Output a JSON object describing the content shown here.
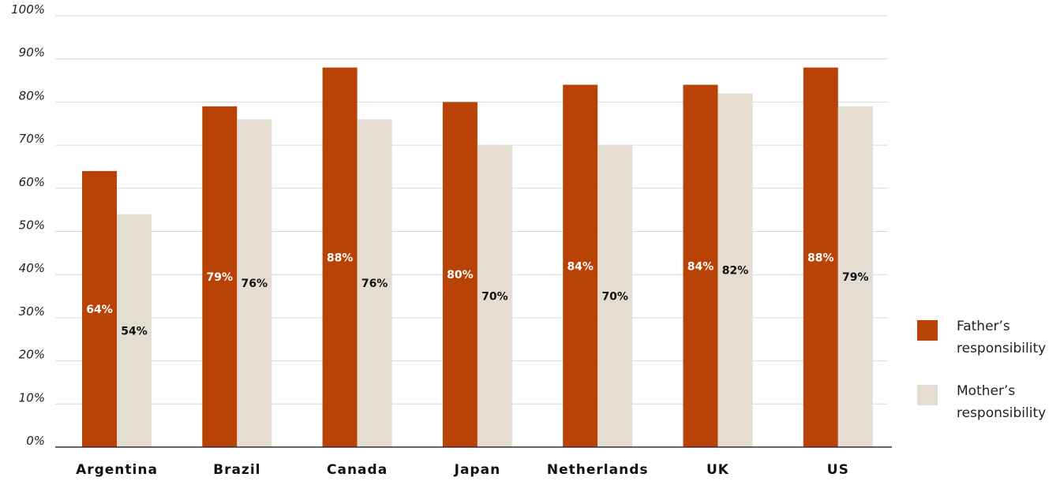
{
  "chart_data": {
    "type": "bar",
    "categories": [
      "Argentina",
      "Brazil",
      "Canada",
      "Japan",
      "Netherlands",
      "UK",
      "US"
    ],
    "series": [
      {
        "name": "Father’s responsibility",
        "values": [
          64,
          79,
          88,
          80,
          84,
          84,
          88
        ],
        "labels": [
          "64%",
          "79%",
          "88%",
          "80%",
          "84%",
          "84%",
          "88%"
        ],
        "color": "#b94207",
        "label_color": "#ffffff"
      },
      {
        "name": "Mother’s responsibility",
        "values": [
          54,
          76,
          76,
          70,
          70,
          82,
          79
        ],
        "labels": [
          "54%",
          "76%",
          "76%",
          "70%",
          "70%",
          "82%",
          "79%"
        ],
        "color": "#e3ddd2",
        "label_color": "#111111"
      }
    ],
    "yticks": [
      {
        "value": 0,
        "label": "0%"
      },
      {
        "value": 10,
        "label": "10%"
      },
      {
        "value": 20,
        "label": "20%"
      },
      {
        "value": 30,
        "label": "30%"
      },
      {
        "value": 40,
        "label": "40%"
      },
      {
        "value": 50,
        "label": "50%"
      },
      {
        "value": 60,
        "label": "60%"
      },
      {
        "value": 70,
        "label": "70%"
      },
      {
        "value": 80,
        "label": "80%"
      },
      {
        "value": 90,
        "label": "90%"
      },
      {
        "value": 100,
        "label": "100%"
      }
    ],
    "ylim": [
      0,
      100
    ],
    "grid": true,
    "legend_position": "right",
    "title": "",
    "xlabel": "",
    "ylabel": ""
  }
}
